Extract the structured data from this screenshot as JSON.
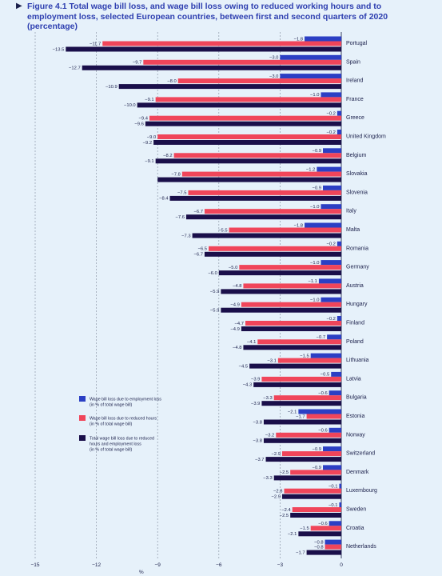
{
  "title": "Figure 4.1  Total wage bill loss, and wage bill loss owing to reduced working hours and to employment loss, selected European countries, between first and second quarters of 2020 (percentage)",
  "chart_data": {
    "type": "bar",
    "orientation": "horizontal",
    "categories": [
      "Portugal",
      "Spain",
      "Ireland",
      "France",
      "Greece",
      "United Kingdom",
      "Belgium",
      "Slovakia",
      "Slovenia",
      "Italy",
      "Malta",
      "Romania",
      "Germany",
      "Austria",
      "Hungary",
      "Finland",
      "Poland",
      "Lithuania",
      "Latvia",
      "Bulgaria",
      "Estonia",
      "Norway",
      "Switzerland",
      "Denmark",
      "Luxembourg",
      "Sweden",
      "Croatia",
      "Netherlands"
    ],
    "series": [
      {
        "name": "Wage bill loss due to employment loss",
        "sub": "(in % of total wage bill)",
        "color": "#2b3fc4",
        "values": [
          -1.8,
          -3.0,
          -3.0,
          -1.0,
          -0.2,
          -0.2,
          -0.9,
          -1.2,
          -0.9,
          -1.0,
          -1.8,
          -0.2,
          -1.0,
          -1.1,
          -1.0,
          -0.2,
          -0.7,
          -1.5,
          -0.5,
          -0.6,
          -2.1,
          -0.6,
          -0.9,
          -0.9,
          -0.1,
          -0.1,
          -0.6,
          -0.8
        ],
        "labels": [
          "−1.8",
          "−3.0",
          "−3.0",
          "−1.0",
          "−0.2",
          "−0.2",
          "−0.9",
          "−1.2",
          "−0.9",
          "−1.0",
          "−1.8",
          "−0.2",
          "−1.0",
          "−1.1",
          "−1.0",
          "−0.2",
          "−0.7",
          "−1.5",
          "−0.5",
          "−0.6",
          "−2.1",
          "−0.6",
          "−0.9",
          "−0.9",
          "−0.1",
          "−0.1",
          "−0.6",
          "−0.8"
        ]
      },
      {
        "name": "Wage bill loss due to reduced hours",
        "sub": "(in % of total wage bill)",
        "color": "#f0455a",
        "values": [
          -11.7,
          -9.7,
          -8.0,
          -9.1,
          -9.4,
          -9.0,
          -8.2,
          -7.8,
          -7.5,
          -6.7,
          -5.5,
          -6.5,
          -5.0,
          -4.8,
          -4.9,
          -4.7,
          -4.1,
          -3.1,
          -3.9,
          -3.3,
          -1.7,
          -3.2,
          -2.9,
          -2.5,
          -2.8,
          -2.4,
          -1.5,
          -0.8
        ],
        "labels": [
          "−11.7",
          "−9.7",
          "−8.0",
          "−9.1",
          "−9.4",
          "−9.0",
          "−8.2",
          "−7.8",
          "−7.5",
          "−6.7",
          "−5.5",
          "−6.5",
          "−5.0",
          "−4.8",
          "−4.9",
          "−4.7",
          "−4.1",
          "−3.1",
          "−3.9",
          "−3.3",
          "−1.7",
          "−3.2",
          "−2.9",
          "−2.5",
          "−2.8",
          "−2.4",
          "−1.5",
          "−0.8"
        ]
      },
      {
        "name": "Total wage bill loss due to reduced hours and employment loss",
        "sub": "(in % of total wage bill)",
        "color": "#1a0f4a",
        "values": [
          -13.5,
          -12.7,
          -10.9,
          -10.0,
          -9.6,
          -9.2,
          -9.1,
          -9.0,
          -8.4,
          -7.6,
          -7.3,
          -6.7,
          -6.0,
          -5.9,
          -5.9,
          -4.9,
          -4.8,
          -4.5,
          -4.3,
          -3.9,
          -3.8,
          -3.8,
          -3.7,
          -3.3,
          -2.9,
          -2.5,
          -2.1,
          -1.7
        ],
        "labels": [
          "−13.5",
          "−12.7",
          "−10.9",
          "−10.0",
          "−9.6",
          "−9.2",
          "−9.1",
          "",
          "−8.4",
          "−7.6",
          "−7.3",
          "−6.7",
          "−6.0",
          "−5.9",
          "−5.9",
          "−4.9",
          "−4.8",
          "−4.5",
          "−4.3",
          "−3.9",
          "−3.8",
          "−3.8",
          "−3.7",
          "−3.3",
          "−2.9",
          "−2.5",
          "−2.1",
          "−1.7"
        ]
      }
    ],
    "xlim": [
      -15,
      0
    ],
    "xticks": [
      -15,
      -12,
      -9,
      -6,
      -3,
      0
    ],
    "xtick_labels": [
      "−15",
      "−12",
      "−9",
      "−6",
      "−3",
      "0"
    ],
    "xlabel": "%",
    "ylabel": "",
    "grid": true,
    "legend_position": "bottom-left"
  }
}
